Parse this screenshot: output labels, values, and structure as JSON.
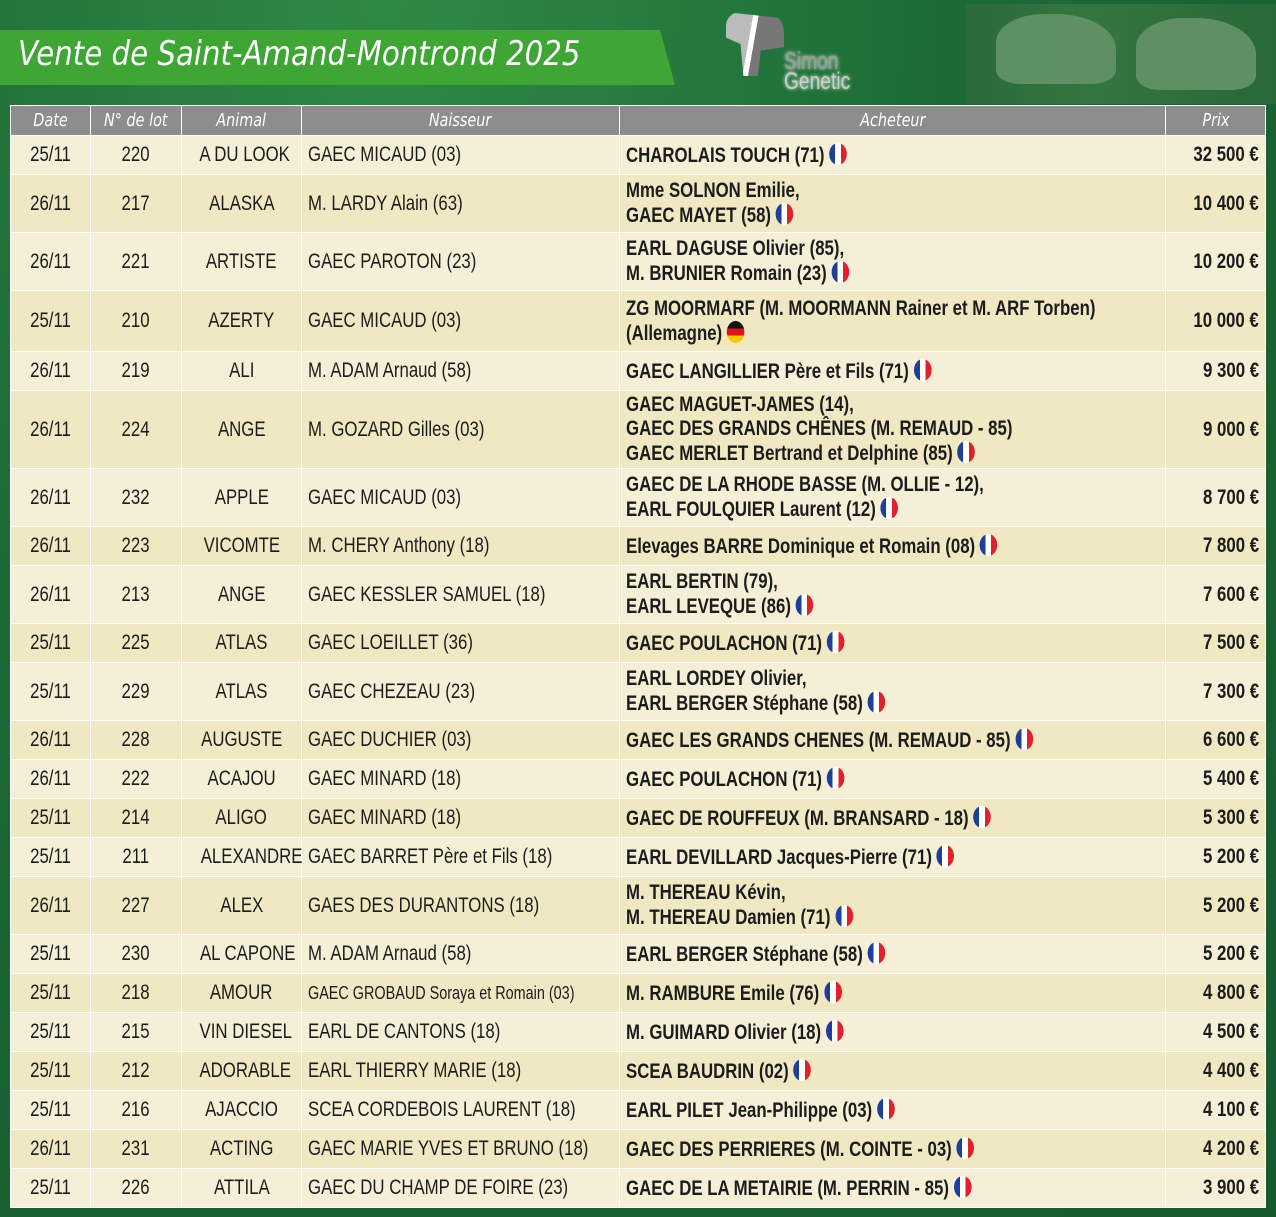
{
  "title": "Vente de Saint-Amand-Montrond 2025",
  "logo": {
    "line1": "Simon",
    "line2": "Genetic"
  },
  "headers": {
    "date": "Date",
    "lot": "N° de lot",
    "animal": "Animal",
    "naisseur": "Naisseur",
    "acheteur": "Acheteur",
    "prix": "Prix"
  },
  "colors": {
    "banner": "#3fa535",
    "header": "#8d8d8d",
    "row": "#f4efd6"
  },
  "rows": [
    {
      "date": "25/11",
      "lot": "220",
      "animal": "A DU LOOK",
      "naisseur": "GAEC MICAUD (03)",
      "acheteur": [
        "CHAROLAIS TOUCH (71)"
      ],
      "flag": "fr",
      "prix": "32 500 €"
    },
    {
      "date": "26/11",
      "lot": "217",
      "animal": "ALASKA",
      "naisseur": "M. LARDY Alain  (63)",
      "acheteur": [
        "Mme SOLNON Emilie,",
        "GAEC MAYET (58)"
      ],
      "flag": "fr",
      "prix": "10 400 €"
    },
    {
      "date": "26/11",
      "lot": "221",
      "animal": "ARTISTE",
      "naisseur": "GAEC PAROTON (23)",
      "acheteur": [
        "EARL DAGUSE Olivier (85),",
        "M. BRUNIER Romain (23)"
      ],
      "flag": "fr",
      "prix": "10 200 €"
    },
    {
      "date": "25/11",
      "lot": "210",
      "animal": "AZERTY",
      "naisseur": "GAEC MICAUD (03)",
      "acheteur": [
        "ZG MOORMARF (M. MOORMANN Rainer et M. ARF Torben)",
        "(Allemagne)"
      ],
      "flag": "de",
      "prix": "10 000 €"
    },
    {
      "date": "26/11",
      "lot": "219",
      "animal": "ALI",
      "naisseur": "M. ADAM Arnaud (58)",
      "acheteur": [
        "GAEC LANGILLIER Père et Fils (71)"
      ],
      "flag": "fr",
      "prix": "9 300 €"
    },
    {
      "date": "26/11",
      "lot": "224",
      "animal": "ANGE",
      "naisseur": "M. GOZARD Gilles (03)",
      "acheteur": [
        "GAEC MAGUET-JAMES (14),",
        "GAEC DES GRANDS CHÊNES (M. REMAUD - 85)",
        "GAEC MERLET Bertrand et Delphine (85)"
      ],
      "flag": "fr",
      "prix": "9 000 €"
    },
    {
      "date": "26/11",
      "lot": "232",
      "animal": "APPLE",
      "naisseur": "GAEC MICAUD (03)",
      "acheteur": [
        "GAEC DE LA RHODE BASSE (M. OLLIE - 12),",
        "EARL FOULQUIER Laurent (12)"
      ],
      "flag": "fr",
      "prix": "8 700 €"
    },
    {
      "date": "26/11",
      "lot": "223",
      "animal": "VICOMTE",
      "naisseur": "M. CHERY Anthony (18)",
      "acheteur": [
        "Elevages BARRE Dominique et Romain (08)"
      ],
      "flag": "fr",
      "prix": "7 800 €"
    },
    {
      "date": "26/11",
      "lot": "213",
      "animal": "ANGE",
      "naisseur": "GAEC KESSLER SAMUEL (18)",
      "acheteur": [
        "EARL BERTIN (79),",
        "EARL LEVEQUE (86)"
      ],
      "flag": "fr",
      "prix": "7 600 €"
    },
    {
      "date": "25/11",
      "lot": "225",
      "animal": "ATLAS",
      "naisseur": "GAEC LOEILLET (36)",
      "acheteur": [
        "GAEC POULACHON (71)"
      ],
      "flag": "fr",
      "prix": "7 500 €"
    },
    {
      "date": "25/11",
      "lot": "229",
      "animal": "ATLAS",
      "naisseur": "GAEC CHEZEAU (23)",
      "acheteur": [
        "EARL LORDEY Olivier,",
        "EARL BERGER Stéphane (58)"
      ],
      "flag": "fr",
      "prix": "7 300 €"
    },
    {
      "date": "26/11",
      "lot": "228",
      "animal": "AUGUSTE",
      "naisseur": "GAEC DUCHIER (03)",
      "acheteur": [
        "GAEC LES GRANDS CHENES (M. REMAUD - 85)"
      ],
      "flag": "fr",
      "prix": "6 600 €"
    },
    {
      "date": "26/11",
      "lot": "222",
      "animal": "ACAJOU",
      "naisseur": "GAEC MINARD (18)",
      "acheteur": [
        "GAEC POULACHON (71)"
      ],
      "flag": "fr",
      "prix": "5 400 €"
    },
    {
      "date": "25/11",
      "lot": "214",
      "animal": "ALIGO",
      "naisseur": "GAEC MINARD (18)",
      "acheteur": [
        "GAEC DE ROUFFEUX (M. BRANSARD - 18)"
      ],
      "flag": "fr",
      "prix": "5 300 €"
    },
    {
      "date": "25/11",
      "lot": "211",
      "animal": "ALEXANDRE",
      "naisseur": "GAEC BARRET Père et Fils (18)",
      "acheteur": [
        "EARL DEVILLARD Jacques-Pierre (71)"
      ],
      "flag": "fr",
      "prix": "5 200 €"
    },
    {
      "date": "26/11",
      "lot": "227",
      "animal": "ALEX",
      "naisseur": "GAES DES DURANTONS (18)",
      "acheteur": [
        "M. THEREAU Kévin,",
        "M. THEREAU Damien (71)"
      ],
      "flag": "fr",
      "prix": "5 200 €"
    },
    {
      "date": "25/11",
      "lot": "230",
      "animal": "AL CAPONE",
      "naisseur": "M. ADAM Arnaud (58)",
      "acheteur": [
        "EARL BERGER Stéphane (58)"
      ],
      "flag": "fr",
      "prix": "5 200 €"
    },
    {
      "date": "25/11",
      "lot": "218",
      "animal": "AMOUR",
      "naisseur": "GAEC GROBAUD Soraya et Romain (03)",
      "acheteur": [
        "M. RAMBURE Emile (76)"
      ],
      "flag": "fr",
      "prix": "4 800 €"
    },
    {
      "date": "25/11",
      "lot": "215",
      "animal": "VIN DIESEL",
      "naisseur": "EARL DE CANTONS (18)",
      "acheteur": [
        "M. GUIMARD Olivier (18)"
      ],
      "flag": "fr",
      "prix": "4 500 €"
    },
    {
      "date": "25/11",
      "lot": "212",
      "animal": "ADORABLE",
      "naisseur": "EARL THIERRY MARIE (18)",
      "acheteur": [
        "SCEA BAUDRIN (02)"
      ],
      "flag": "fr",
      "prix": "4 400 €"
    },
    {
      "date": "25/11",
      "lot": "216",
      "animal": "AJACCIO",
      "naisseur": "SCEA CORDEBOIS LAURENT (18)",
      "acheteur": [
        "EARL PILET Jean-Philippe (03)"
      ],
      "flag": "fr",
      "prix": "4 100 €"
    },
    {
      "date": "26/11",
      "lot": "231",
      "animal": "ACTING",
      "naisseur": "GAEC MARIE YVES ET BRUNO (18)",
      "acheteur": [
        "GAEC DES PERRIERES (M. COINTE - 03)"
      ],
      "flag": "fr",
      "prix": "4 200 €"
    },
    {
      "date": "25/11",
      "lot": "226",
      "animal": "ATTILA",
      "naisseur": "GAEC DU CHAMP DE FOIRE (23)",
      "acheteur": [
        "GAEC DE LA METAIRIE (M. PERRIN - 85)"
      ],
      "flag": "fr",
      "prix": "3 900 €"
    }
  ]
}
